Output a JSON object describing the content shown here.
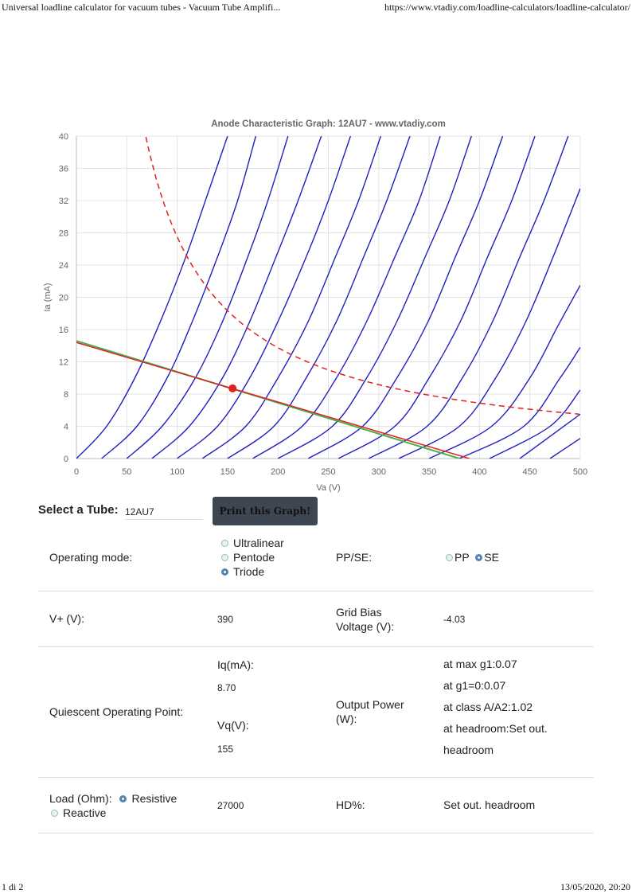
{
  "print_header": {
    "title": "Universal loadline calculator for vacuum tubes - Vacuum Tube Amplifi...",
    "url": "https://www.vtadiy.com/loadline-calculators/loadline-calculator/"
  },
  "print_footer": {
    "page": "1 di 2",
    "datetime": "13/05/2020, 20:20"
  },
  "chart_data": {
    "type": "line",
    "title": "Anode Characteristic Graph: 12AU7 - www.vtadiy.com",
    "xlabel": "Va (V)",
    "ylabel": "Ia (mA)",
    "xlim": [
      0,
      500
    ],
    "ylim": [
      0,
      40
    ],
    "xticks": [
      0,
      50,
      100,
      150,
      200,
      250,
      300,
      350,
      400,
      450,
      500
    ],
    "yticks": [
      0,
      4,
      8,
      12,
      16,
      20,
      24,
      28,
      32,
      36,
      40
    ],
    "grid": true,
    "curve_color": "#1f1fbf",
    "anode_curves": [
      {
        "points": [
          [
            0,
            0
          ],
          [
            30,
            4
          ],
          [
            58,
            10
          ],
          [
            85,
            17.5
          ],
          [
            110,
            25.5
          ],
          [
            128,
            32
          ],
          [
            150,
            40
          ]
        ]
      },
      {
        "points": [
          [
            25,
            0
          ],
          [
            60,
            4
          ],
          [
            90,
            10
          ],
          [
            115,
            17
          ],
          [
            140,
            25
          ],
          [
            160,
            32
          ],
          [
            178,
            40
          ]
        ]
      },
      {
        "points": [
          [
            50,
            0
          ],
          [
            85,
            4
          ],
          [
            118,
            10
          ],
          [
            145,
            17
          ],
          [
            170,
            25
          ],
          [
            190,
            32
          ],
          [
            210,
            40
          ]
        ]
      },
      {
        "points": [
          [
            75,
            0
          ],
          [
            112,
            4
          ],
          [
            145,
            10
          ],
          [
            172,
            17
          ],
          [
            198,
            25
          ],
          [
            220,
            32
          ],
          [
            243,
            40
          ]
        ]
      },
      {
        "points": [
          [
            100,
            0
          ],
          [
            140,
            4
          ],
          [
            172,
            10
          ],
          [
            200,
            17
          ],
          [
            228,
            25
          ],
          [
            250,
            32
          ],
          [
            272,
            40
          ]
        ]
      },
      {
        "points": [
          [
            125,
            0
          ],
          [
            168,
            4
          ],
          [
            200,
            10
          ],
          [
            230,
            17
          ],
          [
            257,
            25
          ],
          [
            280,
            32
          ],
          [
            302,
            40
          ]
        ]
      },
      {
        "points": [
          [
            150,
            0
          ],
          [
            196,
            4
          ],
          [
            228,
            10
          ],
          [
            258,
            17
          ],
          [
            285,
            25
          ],
          [
            308,
            32
          ],
          [
            331,
            40
          ]
        ]
      },
      {
        "points": [
          [
            175,
            0
          ],
          [
            224,
            4
          ],
          [
            258,
            10
          ],
          [
            288,
            17
          ],
          [
            316,
            25
          ],
          [
            340,
            32
          ],
          [
            361,
            40
          ]
        ]
      },
      {
        "points": [
          [
            200,
            0
          ],
          [
            254,
            4
          ],
          [
            288,
            10
          ],
          [
            318,
            17
          ],
          [
            346,
            25
          ],
          [
            370,
            32
          ],
          [
            392,
            40
          ]
        ]
      },
      {
        "points": [
          [
            230,
            0
          ],
          [
            284,
            4
          ],
          [
            318,
            10
          ],
          [
            349,
            17
          ],
          [
            376,
            25
          ],
          [
            400,
            32
          ],
          [
            423,
            40
          ]
        ]
      },
      {
        "points": [
          [
            260,
            0
          ],
          [
            316,
            4
          ],
          [
            350,
            10
          ],
          [
            381,
            17
          ],
          [
            408,
            25
          ],
          [
            432,
            32
          ],
          [
            455,
            40
          ]
        ]
      },
      {
        "points": [
          [
            290,
            0
          ],
          [
            348,
            4
          ],
          [
            383,
            10
          ],
          [
            413,
            17
          ],
          [
            440,
            25
          ],
          [
            464,
            32
          ],
          [
            488,
            40
          ]
        ]
      },
      {
        "points": [
          [
            320,
            0
          ],
          [
            380,
            4
          ],
          [
            416,
            10
          ],
          [
            446,
            17
          ],
          [
            473,
            25
          ],
          [
            500,
            33.5
          ]
        ]
      },
      {
        "points": [
          [
            350,
            0
          ],
          [
            412,
            4
          ],
          [
            450,
            10
          ],
          [
            478,
            16.5
          ],
          [
            500,
            21.5
          ]
        ]
      },
      {
        "points": [
          [
            380,
            0
          ],
          [
            444,
            4
          ],
          [
            480,
            10
          ],
          [
            500,
            13.8
          ]
        ]
      },
      {
        "points": [
          [
            410,
            0
          ],
          [
            470,
            4
          ],
          [
            500,
            8.5
          ]
        ]
      },
      {
        "points": [
          [
            440,
            0
          ],
          [
            500,
            5.5
          ]
        ]
      },
      {
        "points": [
          [
            470,
            0
          ],
          [
            500,
            2.5
          ]
        ]
      }
    ],
    "max_dissipation_curve": {
      "color": "#e02020",
      "va_start": 67,
      "va_end": 500,
      "power_mw": 2750
    },
    "load_line": {
      "color": "#e02020",
      "points": [
        [
          0,
          14.4
        ],
        [
          390,
          0
        ]
      ]
    },
    "ac_load_line": {
      "color": "#4caf50",
      "points": [
        [
          0,
          14.6
        ],
        [
          380,
          0
        ]
      ]
    },
    "operating_point": {
      "va": 155,
      "ia": 8.7,
      "color": "#e02020"
    }
  },
  "controls": {
    "select_tube_label": "Select a Tube:",
    "tube_value": "12AU7",
    "print_button": "Print this Graph!"
  },
  "params": {
    "operating_mode": {
      "label": "Operating mode:",
      "options": [
        "Ultralinear",
        "Pentode",
        "Triode"
      ],
      "selected": "Triode"
    },
    "ppse": {
      "label": "PP/SE:",
      "options": [
        "PP",
        "SE"
      ],
      "selected": "SE"
    },
    "vplus": {
      "label": "V+ (V):",
      "value": "390"
    },
    "grid_bias": {
      "label_1": "Grid Bias",
      "label_2": "Voltage (V):",
      "value": "-4.03"
    },
    "qop": {
      "label": "Quiescent Operating Point:",
      "iq_label": "Iq(mA):",
      "iq_value": "8.70",
      "vq_label": "Vq(V):",
      "vq_value": "155"
    },
    "output_power": {
      "label_1": "Output Power",
      "label_2": "(W):",
      "lines": [
        "at max g1:0.07",
        "at g1=0:0.07",
        "at class A/A2:1.02",
        "at headroom:Set out.",
        "headroom"
      ]
    },
    "load": {
      "label": "Load (Ohm):",
      "options": [
        "Resistive",
        "Reactive"
      ],
      "selected": "Resistive",
      "value": "27000"
    },
    "hd": {
      "label": "HD%:",
      "value": "Set out. headroom"
    }
  }
}
